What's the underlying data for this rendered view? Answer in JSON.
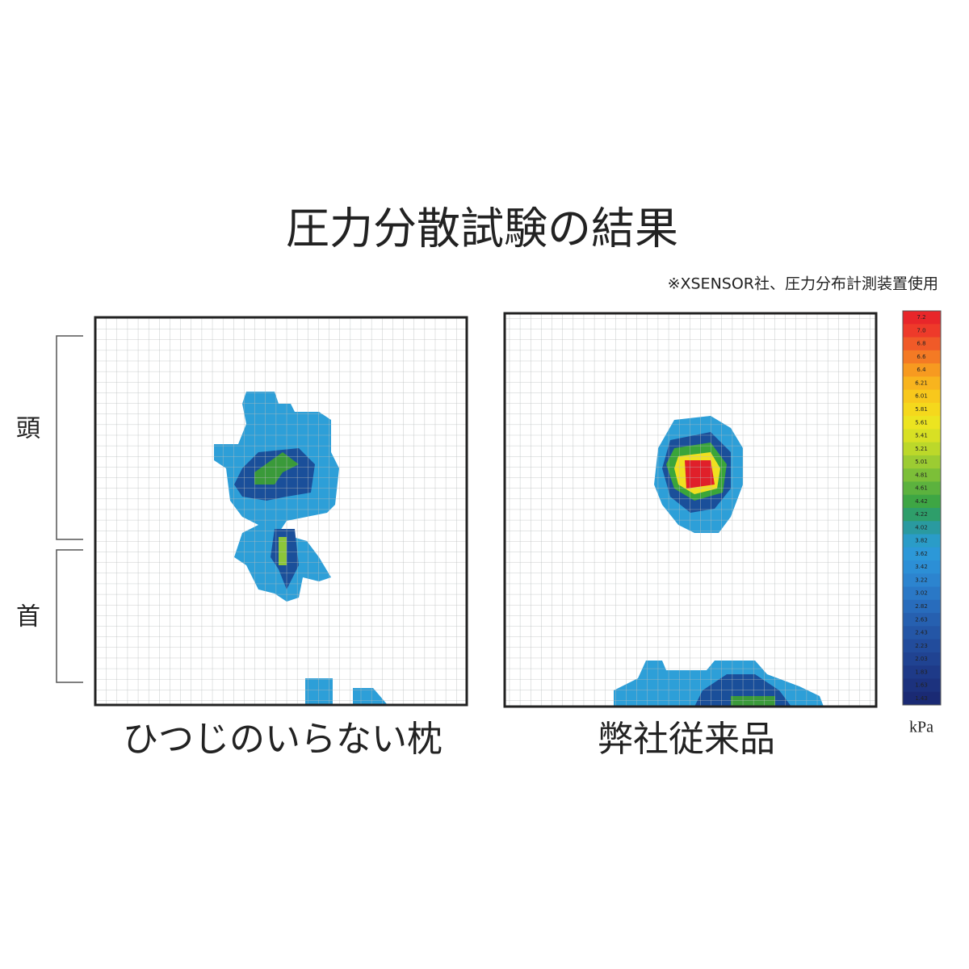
{
  "header": {
    "title": "圧力分散試験の結果",
    "note": "※XSENSOR社、圧力分布計測装置使用"
  },
  "side_labels": {
    "head": "頭",
    "neck": "首"
  },
  "panels": [
    {
      "label": "ひつじのいらない枕"
    },
    {
      "label": "弊社従来品"
    }
  ],
  "legend": {
    "unit": "kPa",
    "labels": [
      "7.2",
      "7.0",
      "6.8",
      "6.6",
      "6.4",
      "6.21",
      "6.01",
      "5.81",
      "5.61",
      "5.41",
      "5.21",
      "5.01",
      "4.81",
      "4.61",
      "4.42",
      "4.22",
      "4.02",
      "3.82",
      "3.62",
      "3.42",
      "3.22",
      "3.02",
      "2.82",
      "2.63",
      "2.43",
      "2.23",
      "2.03",
      "1.83",
      "1.63",
      "1.43"
    ],
    "colors": [
      "#e8262a",
      "#ee3a2a",
      "#f05a28",
      "#f47a24",
      "#f79a20",
      "#f8b41e",
      "#f8c81c",
      "#f5d81c",
      "#ece420",
      "#d8e024",
      "#bcd82a",
      "#9ccc32",
      "#7cbf38",
      "#5cb23e",
      "#3ea644",
      "#2e9e6a",
      "#2a9aa0",
      "#2a9cc8",
      "#2c98d8",
      "#2c8fd6",
      "#2c84cf",
      "#2a78c6",
      "#286cbc",
      "#2660b0",
      "#2456a6",
      "#224c9c",
      "#204392",
      "#1e3a88",
      "#1c327e",
      "#1a2a74"
    ]
  }
}
